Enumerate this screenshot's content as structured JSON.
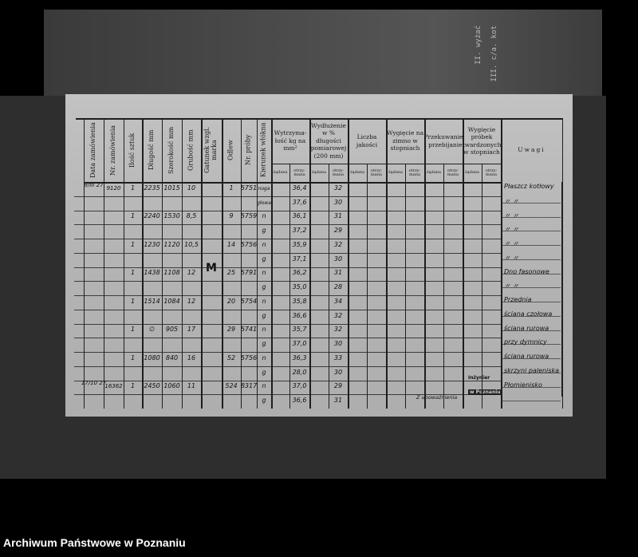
{
  "footer": {
    "archive_name": "Archiwum Państwowe w Poznaniu"
  },
  "backing_page": {
    "fragments": [
      "II. wyżać",
      "III. c/a. kot"
    ]
  },
  "table": {
    "headers": {
      "order_date": "Data zamówienia",
      "order_no": "Nr. zamówienia",
      "quantity": "Ilość sztuk",
      "length": "Długość mm",
      "width": "Szerokość mm",
      "thickness": "Grubość mm",
      "grade": "Gatunek wzgl. marka",
      "cast": "Odlew",
      "sample_no": "Nr. próby",
      "fiber_direction": "Kierunek włókna",
      "tensile_strength": "Wytrzyma-łość kg na mm²",
      "elongation": "Wydłużenie w % długości pomiarowej (200 mm)",
      "quality_number": "Liczba jakości",
      "cold_bend": "Wygięcie na zimno w stopniach",
      "forging_punching": "Przekuwanie i przebijanie",
      "hardened_bend": "Wygięcie próbek twardzonych w stopniach",
      "remarks": "Uwagi"
    },
    "sub_required": "żądana",
    "sub_obtained": "otrzy-mana",
    "grade_mark": "M",
    "rows": [
      {
        "date": "9/III 27",
        "order_no": "9120",
        "qty": "1",
        "length": "2235",
        "width": "1015",
        "thickness": "10",
        "cast": "1",
        "sample": "5751",
        "dir": "noga",
        "strength": "36,4",
        "elong": "32",
        "remark": "Płaszcz kotłowy"
      },
      {
        "date": "",
        "order_no": "",
        "qty": "",
        "length": "",
        "width": "",
        "thickness": "",
        "cast": "",
        "sample": "",
        "dir": "głowa",
        "strength": "37,6",
        "elong": "30",
        "remark": "〃          〃"
      },
      {
        "date": "",
        "order_no": "",
        "qty": "1",
        "length": "2240",
        "width": "1530",
        "thickness": "8,5",
        "cast": "9",
        "sample": "5759",
        "dir": "n",
        "strength": "36,1",
        "elong": "31",
        "remark": "〃          〃"
      },
      {
        "date": "",
        "order_no": "",
        "qty": "",
        "length": "",
        "width": "",
        "thickness": "",
        "cast": "",
        "sample": "",
        "dir": "g",
        "strength": "37,2",
        "elong": "29",
        "remark": "〃          〃"
      },
      {
        "date": "",
        "order_no": "",
        "qty": "1",
        "length": "1230",
        "width": "1120",
        "thickness": "10,5",
        "cast": "14",
        "sample": "5756",
        "dir": "n",
        "strength": "35,9",
        "elong": "32",
        "remark": "〃          〃"
      },
      {
        "date": "",
        "order_no": "",
        "qty": "",
        "length": "",
        "width": "",
        "thickness": "",
        "cast": "",
        "sample": "",
        "dir": "g",
        "strength": "37,1",
        "elong": "30",
        "remark": "〃          〃"
      },
      {
        "date": "",
        "order_no": "",
        "qty": "1",
        "length": "1438",
        "width": "1108",
        "thickness": "12",
        "cast": "25",
        "sample": "5791",
        "dir": "n",
        "strength": "36,2",
        "elong": "31",
        "remark": "Dno fasonowe"
      },
      {
        "date": "",
        "order_no": "",
        "qty": "",
        "length": "",
        "width": "",
        "thickness": "",
        "cast": "",
        "sample": "",
        "dir": "g",
        "strength": "35,0",
        "elong": "28",
        "remark": "〃          〃"
      },
      {
        "date": "",
        "order_no": "",
        "qty": "1",
        "length": "1514",
        "width": "1084",
        "thickness": "12",
        "cast": "20",
        "sample": "5754",
        "dir": "n",
        "strength": "35,8",
        "elong": "34",
        "remark": "Przednia"
      },
      {
        "date": "",
        "order_no": "",
        "qty": "",
        "length": "",
        "width": "",
        "thickness": "",
        "cast": "",
        "sample": "",
        "dir": "g",
        "strength": "36,6",
        "elong": "32",
        "remark": "ściana czołowa"
      },
      {
        "date": "",
        "order_no": "",
        "qty": "1",
        "length": "∅",
        "width": "905",
        "thickness": "17",
        "cast": "29",
        "sample": "5741",
        "dir": "n",
        "strength": "35,7",
        "elong": "32",
        "remark": "ściana rurowa"
      },
      {
        "date": "",
        "order_no": "",
        "qty": "",
        "length": "",
        "width": "",
        "thickness": "",
        "cast": "",
        "sample": "",
        "dir": "g",
        "strength": "37,0",
        "elong": "30",
        "remark": "przy dymnicy"
      },
      {
        "date": "",
        "order_no": "",
        "qty": "1",
        "length": "1080",
        "width": "840",
        "thickness": "16",
        "cast": "52",
        "sample": "5756",
        "dir": "n",
        "strength": "36,3",
        "elong": "33",
        "remark": "ściana rurowa"
      },
      {
        "date": "",
        "order_no": "",
        "qty": "",
        "length": "",
        "width": "",
        "thickness": "",
        "cast": "",
        "sample": "",
        "dir": "g",
        "strength": "28,0",
        "elong": "30",
        "remark": "skrzyni paleniska"
      },
      {
        "date": "17/10 27",
        "order_no": "16362",
        "qty": "1",
        "length": "2450",
        "width": "1060",
        "thickness": "11",
        "cast": "524",
        "sample": "8317",
        "dir": "n",
        "strength": "37,0",
        "elong": "29",
        "remark": "Płomienisko"
      },
      {
        "date": "",
        "order_no": "",
        "qty": "",
        "length": "",
        "width": "",
        "thickness": "",
        "cast": "",
        "sample": "",
        "dir": "g",
        "strength": "36,6",
        "elong": "31",
        "remark": ""
      }
    ]
  },
  "stamp": {
    "line1": "Inżynier",
    "line2": "w Poznaniu",
    "note": "Z upoważnienia"
  }
}
